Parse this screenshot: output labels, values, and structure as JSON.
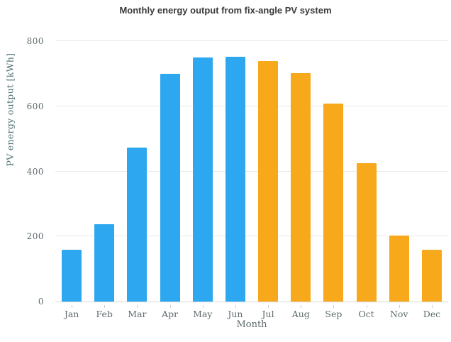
{
  "chart_data": {
    "type": "bar",
    "title": "Monthly energy output from fix-angle PV system",
    "xlabel": "Month",
    "ylabel": "PV energy output [kWh]",
    "categories": [
      "Jan",
      "Feb",
      "Mar",
      "Apr",
      "May",
      "Jun",
      "Jul",
      "Aug",
      "Sep",
      "Oct",
      "Nov",
      "Dec"
    ],
    "values": [
      160,
      238,
      472,
      700,
      750,
      753,
      740,
      702,
      608,
      425,
      202,
      160
    ],
    "bar_colors": [
      "#2da8f0",
      "#2da8f0",
      "#2da8f0",
      "#2da8f0",
      "#2da8f0",
      "#2da8f0",
      "#f7a81b",
      "#f7a81b",
      "#f7a81b",
      "#f7a81b",
      "#f7a81b",
      "#f7a81b"
    ],
    "ylim": [
      0,
      800
    ],
    "yticks": [
      0,
      200,
      400,
      600,
      800
    ],
    "grid": "horizontal",
    "legend": "none",
    "colors": {
      "blue_series": "#2da8f0",
      "orange_series": "#f7a81b",
      "gridline": "#e8e8e8",
      "axis": "#d6d6d6",
      "tick_text": "#5f6b6d",
      "axis_label_text": "#4d6e70",
      "title_text": "#3a3a3a"
    }
  }
}
